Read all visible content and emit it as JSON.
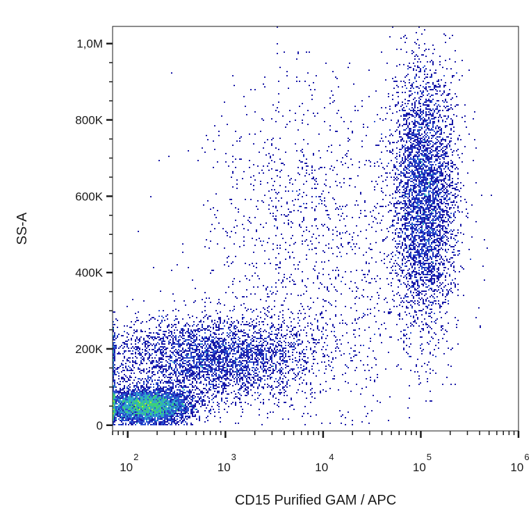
{
  "chart_data": {
    "type": "scatter",
    "title": "",
    "xlabel": "CD15 Purified GAM / APC",
    "ylabel": "SS-A",
    "x_scale": "log",
    "y_scale": "linear",
    "xlim": [
      70,
      1000000
    ],
    "ylim": [
      -15000,
      1045000
    ],
    "x_ticks": [
      {
        "value": 100,
        "base": "10",
        "exp": "2"
      },
      {
        "value": 1000,
        "base": "10",
        "exp": "3"
      },
      {
        "value": 10000,
        "base": "10",
        "exp": "4"
      },
      {
        "value": 100000,
        "base": "10",
        "exp": "5"
      },
      {
        "value": 1000000,
        "base": "10",
        "exp": "6"
      }
    ],
    "y_ticks": [
      {
        "value": 0,
        "label": "0"
      },
      {
        "value": 200000,
        "label": "200K"
      },
      {
        "value": 400000,
        "label": "400K"
      },
      {
        "value": 600000,
        "label": "600K"
      },
      {
        "value": 800000,
        "label": "800K"
      },
      {
        "value": 1000000,
        "label": "1,0M"
      }
    ],
    "grid": false,
    "legend": "none",
    "density_colormap": [
      "#1a1aa8",
      "#2a4fd0",
      "#2fa7c9",
      "#3cd07a",
      "#b6e63a",
      "#f0c020"
    ],
    "populations": [
      {
        "x_center": 160,
        "x_spread_decades": 0.22,
        "y_center": 50000,
        "y_spread": 22000,
        "weight": 0.34
      },
      {
        "x_center": 700,
        "x_spread_decades": 0.55,
        "y_center": 175000,
        "y_spread": 55000,
        "weight": 0.26
      },
      {
        "x_center": 110000,
        "x_spread_decades": 0.16,
        "y_center": 600000,
        "y_spread": 170000,
        "weight": 0.3
      },
      {
        "x_center": 9000,
        "x_spread_decades": 0.6,
        "y_center": 480000,
        "y_spread": 230000,
        "weight": 0.1
      }
    ],
    "event_count_estimate": 14000
  }
}
